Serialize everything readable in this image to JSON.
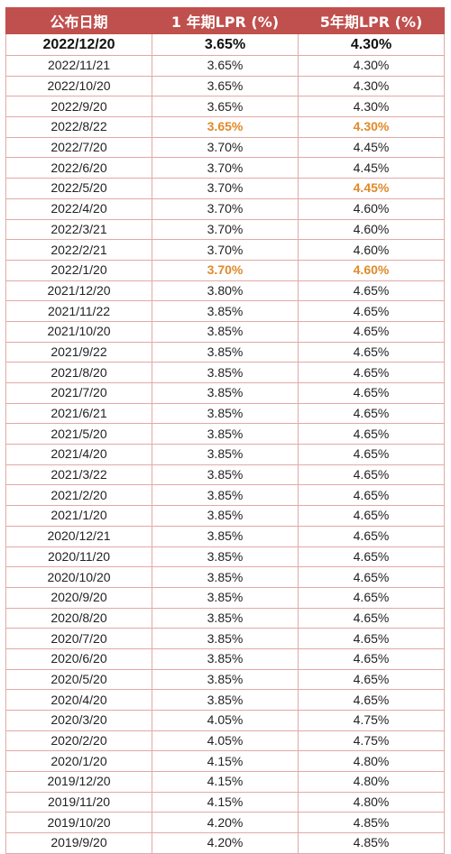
{
  "headers": [
    "公布日期",
    "1 年期LPR (%)",
    "5年期LPR (%)"
  ],
  "rows": [
    {
      "date": "2022/12/20",
      "lpr1": "3.65%",
      "lpr5": "4.30%"
    },
    {
      "date": "2022/11/21",
      "lpr1": "3.65%",
      "lpr5": "4.30%"
    },
    {
      "date": "2022/10/20",
      "lpr1": "3.65%",
      "lpr5": "4.30%"
    },
    {
      "date": "2022/9/20",
      "lpr1": "3.65%",
      "lpr5": "4.30%"
    },
    {
      "date": "2022/8/22",
      "lpr1": "3.65%",
      "lpr5": "4.30%",
      "hl1": true,
      "hl5": true
    },
    {
      "date": "2022/7/20",
      "lpr1": "3.70%",
      "lpr5": "4.45%"
    },
    {
      "date": "2022/6/20",
      "lpr1": "3.70%",
      "lpr5": "4.45%"
    },
    {
      "date": "2022/5/20",
      "lpr1": "3.70%",
      "lpr5": "4.45%",
      "hl5": true
    },
    {
      "date": "2022/4/20",
      "lpr1": "3.70%",
      "lpr5": "4.60%"
    },
    {
      "date": "2022/3/21",
      "lpr1": "3.70%",
      "lpr5": "4.60%"
    },
    {
      "date": "2022/2/21",
      "lpr1": "3.70%",
      "lpr5": "4.60%"
    },
    {
      "date": "2022/1/20",
      "lpr1": "3.70%",
      "lpr5": "4.60%",
      "hl1": true,
      "hl5": true
    },
    {
      "date": "2021/12/20",
      "lpr1": "3.80%",
      "lpr5": "4.65%"
    },
    {
      "date": "2021/11/22",
      "lpr1": "3.85%",
      "lpr5": "4.65%"
    },
    {
      "date": "2021/10/20",
      "lpr1": "3.85%",
      "lpr5": "4.65%"
    },
    {
      "date": "2021/9/22",
      "lpr1": "3.85%",
      "lpr5": "4.65%"
    },
    {
      "date": "2021/8/20",
      "lpr1": "3.85%",
      "lpr5": "4.65%"
    },
    {
      "date": "2021/7/20",
      "lpr1": "3.85%",
      "lpr5": "4.65%"
    },
    {
      "date": "2021/6/21",
      "lpr1": "3.85%",
      "lpr5": "4.65%"
    },
    {
      "date": "2021/5/20",
      "lpr1": "3.85%",
      "lpr5": "4.65%"
    },
    {
      "date": "2021/4/20",
      "lpr1": "3.85%",
      "lpr5": "4.65%"
    },
    {
      "date": "2021/3/22",
      "lpr1": "3.85%",
      "lpr5": "4.65%"
    },
    {
      "date": "2021/2/20",
      "lpr1": "3.85%",
      "lpr5": "4.65%"
    },
    {
      "date": "2021/1/20",
      "lpr1": "3.85%",
      "lpr5": "4.65%"
    },
    {
      "date": "2020/12/21",
      "lpr1": "3.85%",
      "lpr5": "4.65%"
    },
    {
      "date": "2020/11/20",
      "lpr1": "3.85%",
      "lpr5": "4.65%"
    },
    {
      "date": "2020/10/20",
      "lpr1": "3.85%",
      "lpr5": "4.65%"
    },
    {
      "date": "2020/9/20",
      "lpr1": "3.85%",
      "lpr5": "4.65%"
    },
    {
      "date": "2020/8/20",
      "lpr1": "3.85%",
      "lpr5": "4.65%"
    },
    {
      "date": "2020/7/20",
      "lpr1": "3.85%",
      "lpr5": "4.65%"
    },
    {
      "date": "2020/6/20",
      "lpr1": "3.85%",
      "lpr5": "4.65%"
    },
    {
      "date": "2020/5/20",
      "lpr1": "3.85%",
      "lpr5": "4.65%"
    },
    {
      "date": "2020/4/20",
      "lpr1": "3.85%",
      "lpr5": "4.65%"
    },
    {
      "date": "2020/3/20",
      "lpr1": "4.05%",
      "lpr5": "4.75%"
    },
    {
      "date": "2020/2/20",
      "lpr1": "4.05%",
      "lpr5": "4.75%"
    },
    {
      "date": "2020/1/20",
      "lpr1": "4.15%",
      "lpr5": "4.80%"
    },
    {
      "date": "2019/12/20",
      "lpr1": "4.15%",
      "lpr5": "4.80%"
    },
    {
      "date": "2019/11/20",
      "lpr1": "4.15%",
      "lpr5": "4.80%"
    },
    {
      "date": "2019/10/20",
      "lpr1": "4.20%",
      "lpr5": "4.85%"
    },
    {
      "date": "2019/9/20",
      "lpr1": "4.20%",
      "lpr5": "4.85%"
    }
  ],
  "colors": {
    "header_bg": "#c0504d",
    "highlight": "#e08a2a"
  }
}
